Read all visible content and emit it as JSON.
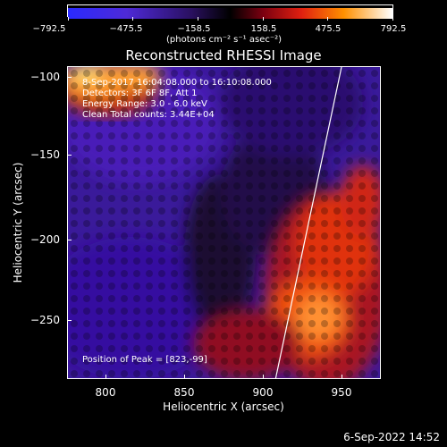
{
  "colorbar": {
    "tick_labels": [
      "−792.5",
      "−475.5",
      "−158.5",
      "158.5",
      "475.5",
      "792.5"
    ],
    "units": "(photons cm⁻² s⁻¹ asec⁻²)"
  },
  "plot": {
    "title": "Reconstructed RHESSI Image",
    "info_line1": "8-Sep-2017 16:04:08.000 to 16:10:08.000",
    "info_line2": "Detectors: 3F 6F 8F, Att 1",
    "info_line3": "Energy Range: 3.0 - 6.0 keV",
    "info_line4": "Clean     Total counts: 3.44E+04",
    "peak_text": "Position of Peak = [823,-99]",
    "x_axis_label": "Heliocentric X (arcsec)",
    "y_axis_label": "Heliocentric Y (arcsec)",
    "x_ticks": [
      "800",
      "850",
      "900",
      "950"
    ],
    "y_ticks": [
      "−100",
      "−150",
      "−200",
      "−250"
    ]
  },
  "footer": {
    "timestamp": "6-Sep-2022 14:52"
  },
  "colors": {
    "background": "#000000",
    "low": "#3000c8",
    "mid": "#c01830",
    "high": "#ffff60"
  }
}
